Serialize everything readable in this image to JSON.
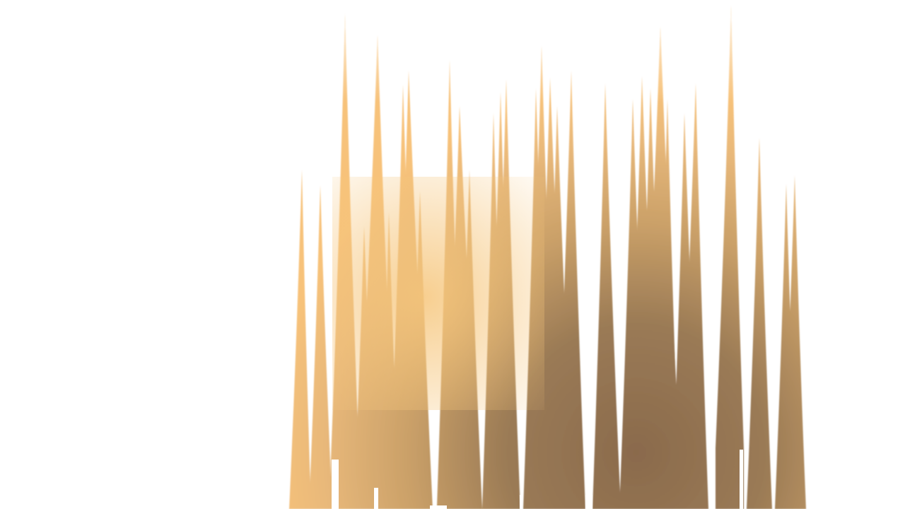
{
  "palette": {
    "background": "#ffffff",
    "tip": "#f7c27a",
    "highlight": "#f3c47c",
    "mid": "#b99361",
    "base": "#8a6a4c"
  },
  "graphic": {
    "icon": "golden-grass-spikes",
    "description_visible_text": ""
  }
}
